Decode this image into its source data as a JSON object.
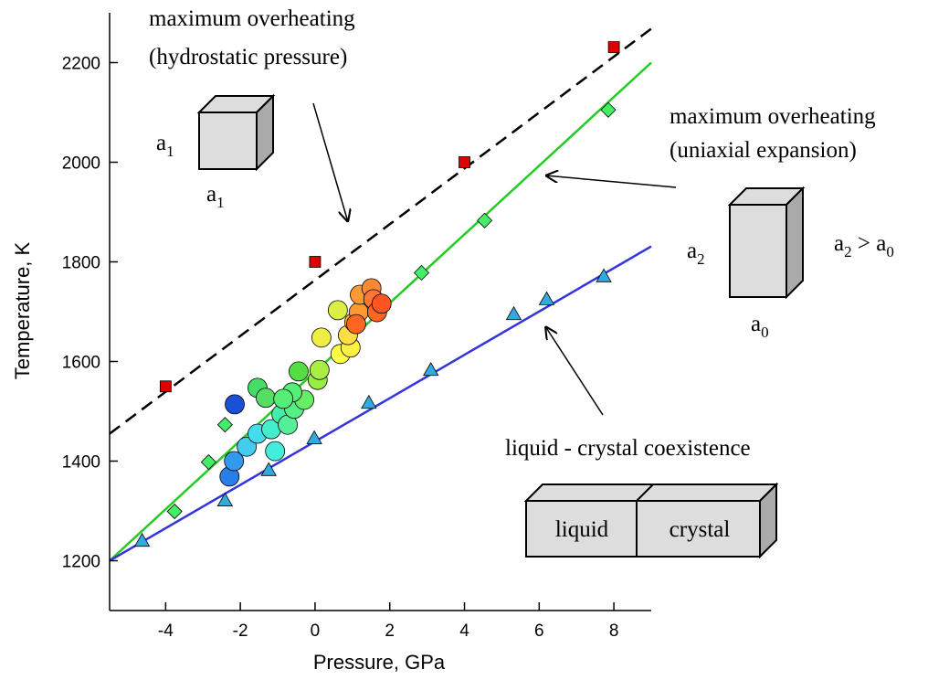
{
  "chart_data": {
    "type": "scatter",
    "xlabel": "Pressure, GPa",
    "ylabel": "Temperature, K",
    "xlim": [
      -5.5,
      9
    ],
    "ylim": [
      1100,
      2300
    ],
    "xticks": [
      -4,
      -2,
      0,
      2,
      4,
      6,
      8
    ],
    "yticks": [
      1200,
      1400,
      1600,
      1800,
      2000,
      2200
    ],
    "series": [
      {
        "type": "line",
        "color": "#000000",
        "dashed": true,
        "x": [
          -5.5,
          9
        ],
        "values": [
          1455,
          2268
        ]
      },
      {
        "type": "line",
        "color": "#22cc22",
        "dashed": false,
        "x": [
          -5.5,
          9
        ],
        "values": [
          1200,
          2200
        ]
      },
      {
        "type": "line",
        "color": "#3333dd",
        "dashed": false,
        "x": [
          -5.5,
          9
        ],
        "values": [
          1200,
          1831
        ]
      },
      {
        "type": "scatter",
        "marker": "square",
        "color": "#dd0000",
        "x": [
          -4,
          0,
          4,
          8
        ],
        "values": [
          1550,
          1800,
          2000,
          2231
        ]
      },
      {
        "type": "scatter",
        "marker": "diamond",
        "color": "#44ee66",
        "x": [
          -3.76,
          -2.85,
          -2.41,
          2.85,
          4.54,
          7.85
        ],
        "values": [
          1299,
          1398,
          1473,
          1778,
          1883,
          2105
        ]
      },
      {
        "type": "scatter",
        "marker": "triangle",
        "color": "#33aadd",
        "x": [
          -4.63,
          -2.41,
          -1.24,
          -0.02,
          1.44,
          3.1,
          5.32,
          6.2,
          7.73
        ],
        "values": [
          1240,
          1321,
          1382,
          1446,
          1517,
          1583,
          1695,
          1725,
          1771
        ]
      },
      {
        "type": "scatter",
        "marker": "circle",
        "x": [
          -2.15,
          -2.29,
          -2.17,
          -1.83,
          -1.54,
          -1.07,
          -1.17,
          -0.9,
          -0.73,
          -0.56,
          -0.29,
          -0.61,
          -1.54,
          -1.32,
          -0.85,
          -0.44,
          0.07,
          0.12,
          0.17,
          0.61,
          0.68,
          0.95,
          0.88,
          1.05,
          1.17,
          1.2,
          1.51,
          1.56,
          1.66,
          1.78,
          1.1
        ],
        "values": [
          1514,
          1369,
          1400,
          1429,
          1455,
          1420,
          1464,
          1494,
          1473,
          1505,
          1523,
          1538,
          1547,
          1527,
          1525,
          1580,
          1563,
          1583,
          1648,
          1703,
          1615,
          1628,
          1653,
          1679,
          1699,
          1734,
          1747,
          1725,
          1699,
          1716,
          1675
        ],
        "colors": [
          "#1c4fd8",
          "#2a7ee8",
          "#3399ee",
          "#44ccee",
          "#44ddee",
          "#44eedd",
          "#44eecc",
          "#44eeaa",
          "#55ee99",
          "#55ee88",
          "#66ee66",
          "#55ee77",
          "#44dd66",
          "#55dd66",
          "#55ee77",
          "#55dd44",
          "#99ee44",
          "#aaee44",
          "#eeee44",
          "#ddee44",
          "#ffff44",
          "#ffee44",
          "#ffdd44",
          "#ffbb33",
          "#ff9933",
          "#ff9933",
          "#ff8833",
          "#ff7733",
          "#ff6622",
          "#ff5522",
          "#ff6622"
        ]
      }
    ],
    "annotations": [
      "maximum overheating",
      "(hydrostatic pressure)",
      "maximum overheating",
      "(uniaxial expansion)",
      "liquid - crystal coexistence",
      "liquid",
      "crystal"
    ],
    "cube_labels": [
      {
        "base": "a",
        "sub": "1"
      },
      {
        "base": "a",
        "sub": "1"
      },
      {
        "base": "a",
        "sub": "2"
      },
      {
        "base": "a",
        "sub": "0"
      }
    ],
    "inequality": {
      "left": "a",
      "left_sub": "2",
      "op": " > a",
      "right_sub": "0"
    }
  }
}
